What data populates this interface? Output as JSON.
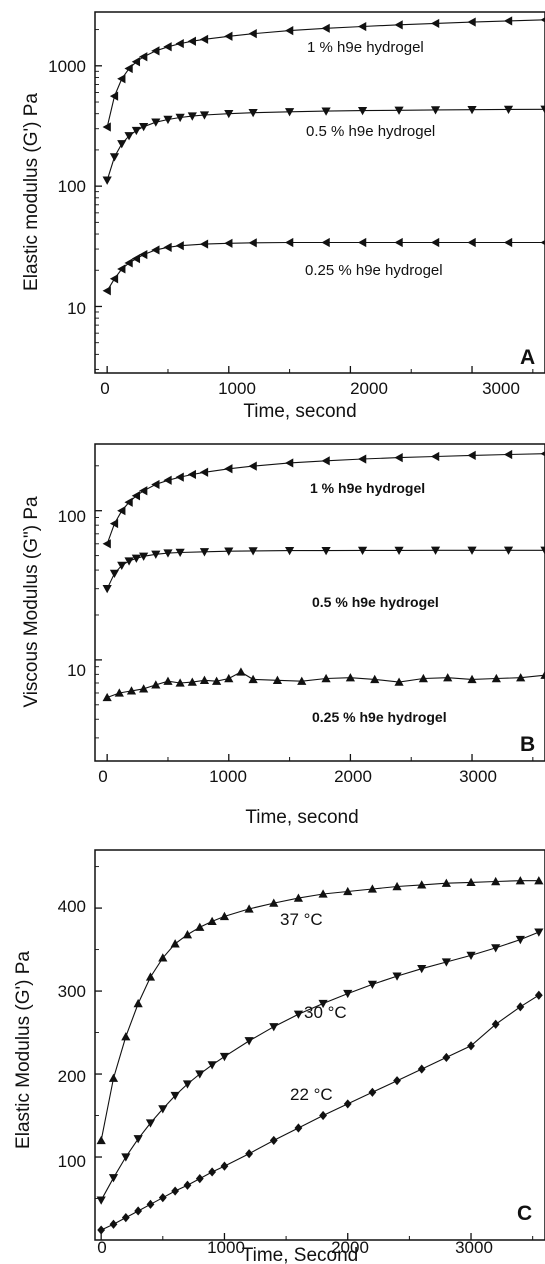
{
  "figure": {
    "panels": [
      {
        "letter": "A",
        "xlabel": "Time, second",
        "ylabel": "Elastic modulus (G') Pa",
        "x_ticks": [
          "0",
          "1000",
          "2000",
          "3000"
        ],
        "y_ticks": [
          "10",
          "100",
          "1000"
        ]
      },
      {
        "letter": "B",
        "xlabel": "Time, second",
        "ylabel": "Viscous Modulus (G\") Pa",
        "x_ticks": [
          "0",
          "1000",
          "2000",
          "3000"
        ],
        "y_ticks": [
          "10",
          "100"
        ]
      },
      {
        "letter": "C",
        "xlabel": "Time, Second",
        "ylabel": "Elastic Modulus (G') Pa",
        "x_ticks": [
          "0",
          "1000",
          "2000",
          "3000"
        ],
        "y_ticks": [
          "100",
          "200",
          "300",
          "400"
        ]
      }
    ]
  },
  "chart_data": [
    {
      "type": "line",
      "panel": "A",
      "xlabel": "Time, second",
      "ylabel": "Elastic modulus (G') Pa",
      "xlim": [
        -100,
        3600
      ],
      "ylim": [
        2.8,
        2800
      ],
      "yscale": "log",
      "grid": false,
      "legend": "inline labels",
      "series": [
        {
          "name": "1 % h9e hydrogel",
          "marker": "triangle-left",
          "color": "#111111",
          "x": [
            0,
            60,
            120,
            180,
            240,
            300,
            400,
            500,
            600,
            700,
            800,
            1000,
            1200,
            1500,
            1800,
            2100,
            2400,
            2700,
            3000,
            3300,
            3600
          ],
          "y": [
            310,
            560,
            780,
            950,
            1080,
            1190,
            1330,
            1440,
            1530,
            1600,
            1660,
            1760,
            1850,
            1960,
            2050,
            2120,
            2190,
            2250,
            2310,
            2360,
            2410
          ]
        },
        {
          "name": "0.5 % h9e hydrogel",
          "marker": "triangle-down",
          "color": "#111111",
          "x": [
            0,
            60,
            120,
            180,
            240,
            300,
            400,
            500,
            600,
            700,
            800,
            1000,
            1200,
            1500,
            1800,
            2100,
            2400,
            2700,
            3000,
            3300,
            3600
          ],
          "y": [
            112,
            175,
            225,
            262,
            290,
            312,
            340,
            358,
            372,
            382,
            390,
            400,
            408,
            415,
            420,
            424,
            427,
            430,
            432,
            434,
            435
          ]
        },
        {
          "name": "0.25 % h9e hydrogel",
          "marker": "triangle-left",
          "color": "#111111",
          "x": [
            0,
            60,
            120,
            180,
            240,
            300,
            400,
            500,
            600,
            800,
            1000,
            1200,
            1500,
            1800,
            2100,
            2400,
            2700,
            3000,
            3300,
            3600
          ],
          "y": [
            13.5,
            17,
            20.5,
            23,
            25,
            27,
            29.5,
            31,
            32,
            33,
            33.5,
            33.8,
            34,
            34,
            34,
            34,
            34,
            34,
            34,
            34
          ]
        }
      ],
      "annotations": [
        "1 % h9e hydrogel",
        "0.5 % h9e hydrogel",
        "0.25 % h9e hydrogel",
        "A"
      ]
    },
    {
      "type": "line",
      "panel": "B",
      "xlabel": "Time, second",
      "ylabel": "Viscous Modulus (G\") Pa",
      "xlim": [
        -100,
        3600
      ],
      "ylim": [
        2.1,
        280
      ],
      "yscale": "log",
      "grid": false,
      "legend": "inline labels",
      "series": [
        {
          "name": "1 % h9e hydrogel",
          "marker": "triangle-left",
          "color": "#111111",
          "x": [
            0,
            60,
            120,
            180,
            240,
            300,
            400,
            500,
            600,
            700,
            800,
            1000,
            1200,
            1500,
            1800,
            2100,
            2400,
            2700,
            3000,
            3300,
            3600
          ],
          "y": [
            60,
            82,
            100,
            114,
            126,
            136,
            150,
            160,
            168,
            175,
            181,
            191,
            199,
            209,
            216,
            222,
            227,
            231,
            235,
            238,
            241
          ]
        },
        {
          "name": "0.5 % h9e hydrogel",
          "marker": "triangle-down",
          "color": "#111111",
          "x": [
            0,
            60,
            120,
            180,
            240,
            300,
            400,
            500,
            600,
            800,
            1000,
            1200,
            1500,
            1800,
            2100,
            2400,
            2700,
            3000,
            3300,
            3600
          ],
          "y": [
            30,
            38,
            43,
            46,
            48,
            49.5,
            51,
            52,
            52.5,
            53,
            53.5,
            53.8,
            54,
            54,
            54.2,
            54.2,
            54.3,
            54.3,
            54.3,
            54.3
          ]
        },
        {
          "name": "0.25 % h9e hydrogel",
          "marker": "triangle-up",
          "color": "#111111",
          "x": [
            0,
            100,
            200,
            300,
            400,
            500,
            600,
            700,
            800,
            900,
            1000,
            1100,
            1200,
            1400,
            1600,
            1800,
            2000,
            2200,
            2400,
            2600,
            2800,
            3000,
            3200,
            3400,
            3600
          ],
          "y": [
            5.6,
            6.0,
            6.2,
            6.4,
            6.8,
            7.2,
            7.0,
            7.1,
            7.3,
            7.2,
            7.5,
            8.3,
            7.4,
            7.3,
            7.2,
            7.5,
            7.6,
            7.4,
            7.1,
            7.5,
            7.6,
            7.4,
            7.5,
            7.6,
            7.9
          ]
        }
      ],
      "annotations": [
        "1 % h9e hydrogel",
        "0.5 % h9e hydrogel",
        "0.25 % h9e hydrogel",
        "B"
      ]
    },
    {
      "type": "line",
      "panel": "C",
      "xlabel": "Time, Second",
      "ylabel": "Elastic Modulus (G') Pa",
      "xlim": [
        -50,
        3600
      ],
      "ylim": [
        0,
        470
      ],
      "yscale": "linear",
      "grid": false,
      "legend": "inline labels",
      "series": [
        {
          "name": "37 °C",
          "marker": "triangle-up",
          "color": "#111111",
          "x": [
            0,
            100,
            200,
            300,
            400,
            500,
            600,
            700,
            800,
            900,
            1000,
            1200,
            1400,
            1600,
            1800,
            2000,
            2200,
            2400,
            2600,
            2800,
            3000,
            3200,
            3400,
            3550
          ],
          "y": [
            120,
            195,
            245,
            285,
            317,
            340,
            357,
            368,
            377,
            384,
            390,
            399,
            406,
            412,
            417,
            420,
            423,
            426,
            428,
            430,
            431,
            432,
            433,
            433
          ]
        },
        {
          "name": "30 °C",
          "marker": "triangle-down",
          "color": "#111111",
          "x": [
            0,
            100,
            200,
            300,
            400,
            500,
            600,
            700,
            800,
            900,
            1000,
            1200,
            1400,
            1600,
            1800,
            2000,
            2200,
            2400,
            2600,
            2800,
            3000,
            3200,
            3400,
            3550
          ],
          "y": [
            48,
            75,
            100,
            122,
            141,
            158,
            174,
            188,
            200,
            211,
            221,
            240,
            257,
            272,
            285,
            297,
            308,
            318,
            327,
            335,
            343,
            352,
            362,
            371
          ]
        },
        {
          "name": "22 °C",
          "marker": "diamond",
          "color": "#111111",
          "x": [
            0,
            100,
            200,
            300,
            400,
            500,
            600,
            700,
            800,
            900,
            1000,
            1200,
            1400,
            1600,
            1800,
            2000,
            2200,
            2400,
            2600,
            2800,
            3000,
            3200,
            3400,
            3550
          ],
          "y": [
            12,
            19,
            27,
            35,
            43,
            51,
            59,
            66,
            74,
            82,
            89,
            104,
            120,
            135,
            150,
            164,
            178,
            192,
            206,
            220,
            234,
            260,
            281,
            295
          ]
        }
      ],
      "annotations": [
        "37 °C",
        "30 °C",
        "22 °C",
        "C"
      ]
    }
  ]
}
